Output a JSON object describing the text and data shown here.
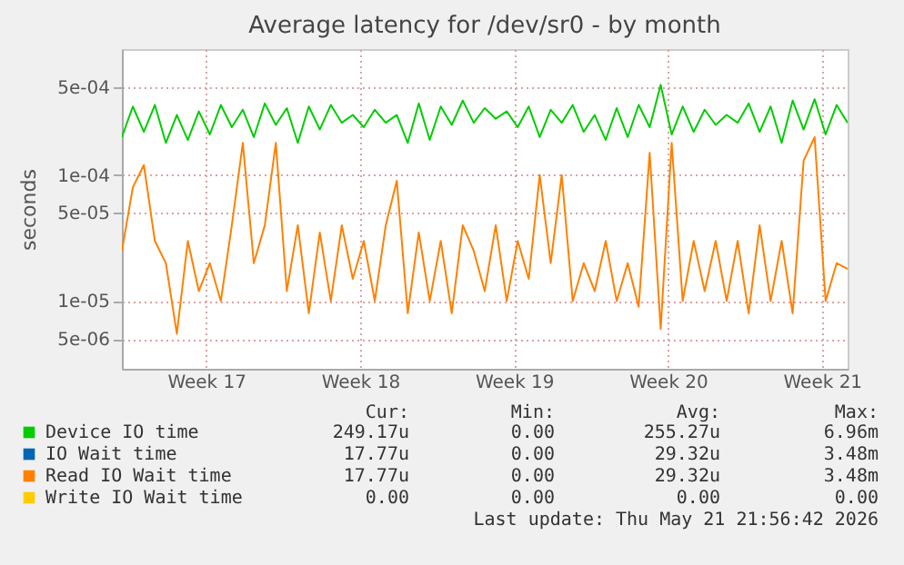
{
  "chart_data": {
    "type": "line",
    "title": "Average latency for /dev/sr0 - by month",
    "ylabel": "seconds",
    "log": true,
    "grid": true,
    "legend": "bottom",
    "marker": "none",
    "line_style": "solid",
    "xlim": [
      "2026-04-18T22:00",
      "2026-05-21T22:00"
    ],
    "xticks": [
      {
        "value": "2026-04-22T18:00",
        "label": "Week 17"
      },
      {
        "value": "2026-04-29T18:00",
        "label": "Week 18"
      },
      {
        "value": "2026-05-06T18:00",
        "label": "Week 19"
      },
      {
        "value": "2026-05-13T18:00",
        "label": "Week 20"
      },
      {
        "value": "2026-05-20T18:00",
        "label": "Week 21"
      }
    ],
    "ylim": [
      2.9e-06,
      0.001
    ],
    "yticks": [
      {
        "value": 5e-06,
        "label": "5e-06"
      },
      {
        "value": 1e-05,
        "label": "1e-05"
      },
      {
        "value": 5e-05,
        "label": "5e-05"
      },
      {
        "value": 0.0001,
        "label": "1e-04"
      },
      {
        "value": 0.0005,
        "label": "5e-04"
      }
    ],
    "x": [
      "2026-04-18T22:00",
      "2026-04-19T10:00",
      "2026-04-19T22:00",
      "2026-04-20T10:00",
      "2026-04-20T22:00",
      "2026-04-21T10:00",
      "2026-04-21T22:00",
      "2026-04-22T10:00",
      "2026-04-22T22:00",
      "2026-04-23T10:00",
      "2026-04-23T22:00",
      "2026-04-24T10:00",
      "2026-04-24T22:00",
      "2026-04-25T10:00",
      "2026-04-25T22:00",
      "2026-04-26T10:00",
      "2026-04-26T22:00",
      "2026-04-27T10:00",
      "2026-04-27T22:00",
      "2026-04-28T10:00",
      "2026-04-28T22:00",
      "2026-04-29T10:00",
      "2026-04-29T22:00",
      "2026-04-30T10:00",
      "2026-04-30T22:00",
      "2026-05-01T10:00",
      "2026-05-01T22:00",
      "2026-05-02T10:00",
      "2026-05-02T22:00",
      "2026-05-03T10:00",
      "2026-05-03T22:00",
      "2026-05-04T10:00",
      "2026-05-04T22:00",
      "2026-05-05T10:00",
      "2026-05-05T22:00",
      "2026-05-06T10:00",
      "2026-05-06T22:00",
      "2026-05-07T10:00",
      "2026-05-07T22:00",
      "2026-05-08T10:00",
      "2026-05-08T22:00",
      "2026-05-09T10:00",
      "2026-05-09T22:00",
      "2026-05-10T10:00",
      "2026-05-10T22:00",
      "2026-05-11T10:00",
      "2026-05-11T22:00",
      "2026-05-12T10:00",
      "2026-05-12T22:00",
      "2026-05-13T10:00",
      "2026-05-13T22:00",
      "2026-05-14T10:00",
      "2026-05-14T22:00",
      "2026-05-15T10:00",
      "2026-05-15T22:00",
      "2026-05-16T10:00",
      "2026-05-16T22:00",
      "2026-05-17T10:00",
      "2026-05-17T22:00",
      "2026-05-18T10:00",
      "2026-05-18T22:00",
      "2026-05-19T10:00",
      "2026-05-19T22:00",
      "2026-05-20T10:00",
      "2026-05-20T22:00",
      "2026-05-21T10:00",
      "2026-05-21T22:00"
    ],
    "series": [
      {
        "name": "Device IO time",
        "color": "#00cc00",
        "values": [
          0.0002,
          0.00035,
          0.00022,
          0.00036,
          0.00018,
          0.0003,
          0.00019,
          0.00032,
          0.00021,
          0.00036,
          0.00024,
          0.00033,
          0.0002,
          0.00037,
          0.00025,
          0.00034,
          0.00018,
          0.00035,
          0.00023,
          0.00036,
          0.00026,
          0.0003,
          0.00024,
          0.00033,
          0.00026,
          0.0003,
          0.00018,
          0.00037,
          0.00019,
          0.00035,
          0.00025,
          0.00039,
          0.00026,
          0.00034,
          0.00028,
          0.00032,
          0.00024,
          0.00035,
          0.0002,
          0.00033,
          0.00026,
          0.00036,
          0.00022,
          0.0003,
          0.00019,
          0.00034,
          0.0002,
          0.00036,
          0.00024,
          0.00052,
          0.00021,
          0.00035,
          0.00022,
          0.00033,
          0.00025,
          0.0003,
          0.00026,
          0.00037,
          0.00022,
          0.00035,
          0.00018,
          0.00039,
          0.00023,
          0.0004,
          0.00021,
          0.00036,
          0.00026
        ]
      },
      {
        "name": "IO Wait time",
        "color": "#0066b3",
        "values": [
          null,
          null,
          null,
          null,
          null,
          null,
          null,
          null,
          null,
          null,
          null,
          null,
          null,
          null,
          null,
          null,
          null,
          null,
          null,
          null,
          null,
          null,
          null,
          null,
          null,
          null,
          null,
          null,
          null,
          null,
          null,
          null,
          null,
          null,
          null,
          null,
          null,
          null,
          null,
          null,
          null,
          null,
          null,
          null,
          null,
          null,
          null,
          null,
          null,
          null,
          null,
          null,
          null,
          null,
          null,
          null,
          null,
          null,
          null,
          null,
          null,
          null,
          null,
          null,
          null,
          null,
          null
        ]
      },
      {
        "name": "Read IO Wait time",
        "color": "#ff8000",
        "values": [
          2.5e-05,
          8e-05,
          0.00012,
          3e-05,
          2e-05,
          5.5e-06,
          3e-05,
          1.2e-05,
          2e-05,
          1e-05,
          4e-05,
          0.00018,
          2e-05,
          4e-05,
          0.00018,
          1.2e-05,
          4e-05,
          8e-06,
          3.5e-05,
          1e-05,
          4e-05,
          1.5e-05,
          3e-05,
          1e-05,
          4e-05,
          9e-05,
          8e-06,
          3.5e-05,
          1e-05,
          3e-05,
          8e-06,
          4e-05,
          2.5e-05,
          1.2e-05,
          4e-05,
          1e-05,
          3e-05,
          1.5e-05,
          0.0001,
          2e-05,
          0.0001,
          1e-05,
          2e-05,
          1.2e-05,
          3e-05,
          1e-05,
          2e-05,
          9e-06,
          0.00015,
          6e-06,
          0.00018,
          1e-05,
          3e-05,
          1.2e-05,
          3e-05,
          1e-05,
          3e-05,
          8e-06,
          4e-05,
          1e-05,
          3e-05,
          8e-06,
          0.00013,
          0.0002,
          1e-05,
          2e-05,
          1.8e-05
        ]
      },
      {
        "name": "Write IO Wait time",
        "color": "#ffcc00",
        "values": [
          null,
          null,
          null,
          null,
          null,
          null,
          null,
          null,
          null,
          null,
          null,
          null,
          null,
          null,
          null,
          null,
          null,
          null,
          null,
          null,
          null,
          null,
          null,
          null,
          null,
          null,
          null,
          null,
          null,
          null,
          null,
          null,
          null,
          null,
          null,
          null,
          null,
          null,
          null,
          null,
          null,
          null,
          null,
          null,
          null,
          null,
          null,
          null,
          null,
          null,
          null,
          null,
          null,
          null,
          null,
          null,
          null,
          null,
          null,
          null,
          null,
          null,
          null,
          null,
          null,
          null,
          null
        ]
      }
    ],
    "annotations": [
      "Cur:",
      "Min:",
      "Avg:",
      "Max:",
      "249.17u",
      "0.00",
      "255.27u",
      "6.96m",
      "17.77u",
      "0.00",
      "29.32u",
      "3.48m",
      "17.77u",
      "0.00",
      "29.32u",
      "3.48m",
      "0.00",
      "0.00",
      "0.00",
      "0.00",
      "Last update: Thu May 21 21:56:42 2026"
    ]
  }
}
